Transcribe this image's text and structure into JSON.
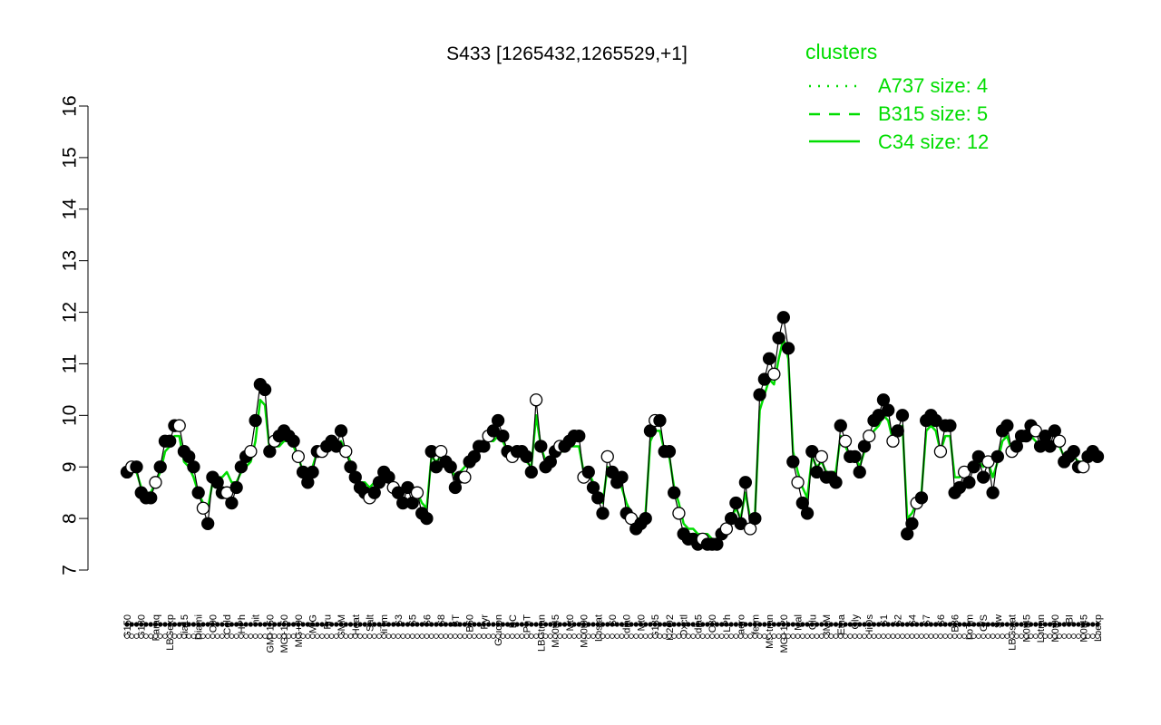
{
  "chart_data": {
    "type": "line",
    "title": "S433 [1265432,1265529,+1]",
    "xlabel": "",
    "ylabel": "",
    "ylim": [
      7,
      16
    ],
    "yticks": [
      7,
      8,
      9,
      10,
      11,
      12,
      13,
      14,
      15,
      16
    ],
    "x_tick_labels": [
      "G150",
      "G180",
      "Paraq",
      "LBGexp",
      "dia15",
      "Diami",
      "C90",
      "Cold",
      "HPh",
      "nit",
      "GM+150",
      "MG+150",
      "MG+90",
      "M/G",
      "Fru",
      "SMM",
      "Heat",
      "Salt",
      "HiTm",
      "S3",
      "S5",
      "S6",
      "S8",
      "BT",
      "B60",
      "Pyr",
      "Glucon",
      "BC",
      "LPhT",
      "LBGtran",
      "M40t45",
      "Mt0",
      "M40t90",
      "Lbstat",
      "S0",
      "dia0",
      "Mt0",
      "G135",
      "H2O2",
      "Oxctl",
      "dia5",
      "C30",
      "LPh",
      "aero",
      "ferm",
      "M9-tran",
      "MG+120",
      "Mal",
      "Glu",
      "BMM",
      "Etha",
      "Gly",
      "HiOs",
      "S1",
      "S2",
      "S4",
      "S7",
      "S6",
      "B36",
      "LoTm",
      "G/S",
      "Sw",
      "LBGstat",
      "M0t45",
      "Lbtran",
      "M0t90",
      "BI",
      "M0t45",
      "Lbexp"
    ],
    "legend": {
      "title": "clusters",
      "entries": [
        {
          "label": "A737 size: 4",
          "style": "dotted"
        },
        {
          "label": "B315 size: 5",
          "style": "dashed"
        },
        {
          "label": "C34 size: 12",
          "style": "solid"
        }
      ]
    },
    "series": [
      {
        "style": "black",
        "values": [
          8.9,
          9.0,
          9.0,
          8.5,
          8.4,
          8.4,
          8.7,
          9.0,
          9.5,
          9.5,
          9.8,
          9.8,
          9.3,
          9.2,
          9.0,
          8.5,
          8.2,
          7.9,
          8.8,
          8.7,
          8.5,
          8.5,
          8.3,
          8.6,
          9.0,
          9.2,
          9.3,
          9.9,
          10.6,
          10.5,
          9.3,
          9.5,
          9.6,
          9.7,
          9.6,
          9.5,
          9.2,
          8.9,
          8.7,
          8.9,
          9.3,
          9.3,
          9.4,
          9.5,
          9.4,
          9.7,
          9.3,
          9.0,
          8.8,
          8.6,
          8.5,
          8.4,
          8.5,
          8.7,
          8.9,
          8.8,
          8.6,
          8.5,
          8.3,
          8.6,
          8.3,
          8.5,
          8.1,
          8.0,
          9.3,
          9.0,
          9.3,
          9.1,
          9.0,
          8.6,
          8.8,
          8.8,
          9.1,
          9.2,
          9.4,
          9.4,
          9.6,
          9.7,
          9.9,
          9.6,
          9.3,
          9.2,
          9.3,
          9.3,
          9.2,
          8.9,
          10.3,
          9.4,
          9.0,
          9.1,
          9.3,
          9.4,
          9.4,
          9.5,
          9.6,
          9.6,
          8.8,
          8.9,
          8.6,
          8.4,
          8.1,
          9.2,
          8.9,
          8.7,
          8.8,
          8.1,
          8.0,
          7.8,
          7.9,
          8.0,
          9.7,
          9.9,
          9.9,
          9.3,
          9.3,
          8.5,
          8.1,
          7.7,
          7.6,
          7.6,
          7.5,
          7.6,
          7.5,
          7.5,
          7.5,
          7.7,
          7.8,
          8.0,
          8.3,
          7.9,
          8.7,
          7.8,
          8.0,
          10.4,
          10.7,
          11.1,
          10.8,
          11.5,
          11.9,
          11.3,
          9.1,
          8.7,
          8.3,
          8.1,
          9.3,
          8.9,
          9.2,
          8.8,
          8.8,
          8.7,
          9.8,
          9.5,
          9.2,
          9.2,
          8.9,
          9.4,
          9.6,
          9.9,
          10.0,
          10.3,
          10.1,
          9.5,
          9.7,
          10.0,
          7.7,
          7.9,
          8.3,
          8.4,
          9.9,
          10.0,
          9.9,
          9.3,
          9.8,
          9.8,
          8.5,
          8.6,
          8.9,
          8.7,
          9.0,
          9.2,
          8.8,
          9.1,
          8.5,
          9.2,
          9.7,
          9.8,
          9.3,
          9.4,
          9.6,
          9.6,
          9.8,
          9.7,
          9.4,
          9.6,
          9.4,
          9.7,
          9.5,
          9.1,
          9.2,
          9.3,
          9.0,
          9.0,
          9.2,
          9.3,
          9.2
        ]
      },
      {
        "style": "green",
        "values": [
          8.8,
          8.9,
          8.9,
          8.6,
          8.5,
          8.5,
          8.7,
          8.9,
          9.3,
          9.4,
          9.6,
          9.6,
          9.1,
          9.0,
          8.8,
          8.5,
          8.3,
          8.2,
          8.7,
          8.8,
          8.8,
          8.9,
          8.7,
          8.7,
          8.9,
          9.0,
          9.1,
          9.5,
          10.3,
          10.2,
          9.3,
          9.4,
          9.4,
          9.5,
          9.5,
          9.4,
          9.2,
          8.9,
          8.8,
          9.0,
          9.3,
          9.4,
          9.4,
          9.4,
          9.4,
          9.5,
          9.3,
          9.1,
          8.9,
          8.7,
          8.7,
          8.6,
          8.7,
          8.8,
          8.9,
          8.8,
          8.7,
          8.6,
          8.5,
          8.6,
          8.5,
          8.5,
          8.3,
          8.2,
          9.2,
          9.1,
          9.2,
          9.1,
          9.0,
          8.8,
          8.9,
          9.0,
          9.2,
          9.3,
          9.4,
          9.4,
          9.5,
          9.5,
          9.6,
          9.5,
          9.3,
          9.2,
          9.2,
          9.2,
          9.1,
          9.0,
          10.0,
          9.4,
          9.1,
          9.1,
          9.2,
          9.3,
          9.3,
          9.4,
          9.4,
          9.4,
          8.9,
          8.9,
          8.7,
          8.5,
          8.3,
          9.0,
          8.9,
          8.7,
          8.6,
          8.3,
          8.1,
          8.0,
          8.0,
          8.1,
          9.5,
          9.7,
          9.7,
          9.3,
          9.2,
          8.6,
          8.3,
          7.9,
          7.8,
          7.8,
          7.7,
          7.7,
          7.7,
          7.6,
          7.6,
          7.8,
          7.8,
          8.0,
          8.2,
          8.0,
          8.5,
          8.0,
          8.1,
          10.1,
          10.4,
          10.7,
          10.6,
          11.1,
          11.5,
          11.1,
          9.3,
          8.9,
          8.6,
          8.4,
          9.2,
          9.0,
          9.1,
          8.9,
          8.9,
          8.9,
          9.6,
          9.4,
          9.2,
          9.2,
          9.0,
          9.3,
          9.5,
          9.7,
          9.8,
          10.0,
          9.9,
          9.5,
          9.6,
          9.8,
          8.0,
          8.1,
          8.3,
          8.5,
          9.7,
          9.8,
          9.7,
          9.3,
          9.6,
          9.6,
          8.8,
          8.8,
          9.0,
          8.9,
          9.0,
          9.1,
          9.0,
          9.1,
          8.8,
          9.1,
          9.5,
          9.6,
          9.3,
          9.4,
          9.5,
          9.5,
          9.6,
          9.5,
          9.4,
          9.5,
          9.4,
          9.5,
          9.4,
          9.2,
          9.2,
          9.2,
          9.1,
          9.1,
          9.2,
          9.2,
          9.1
        ]
      }
    ]
  }
}
